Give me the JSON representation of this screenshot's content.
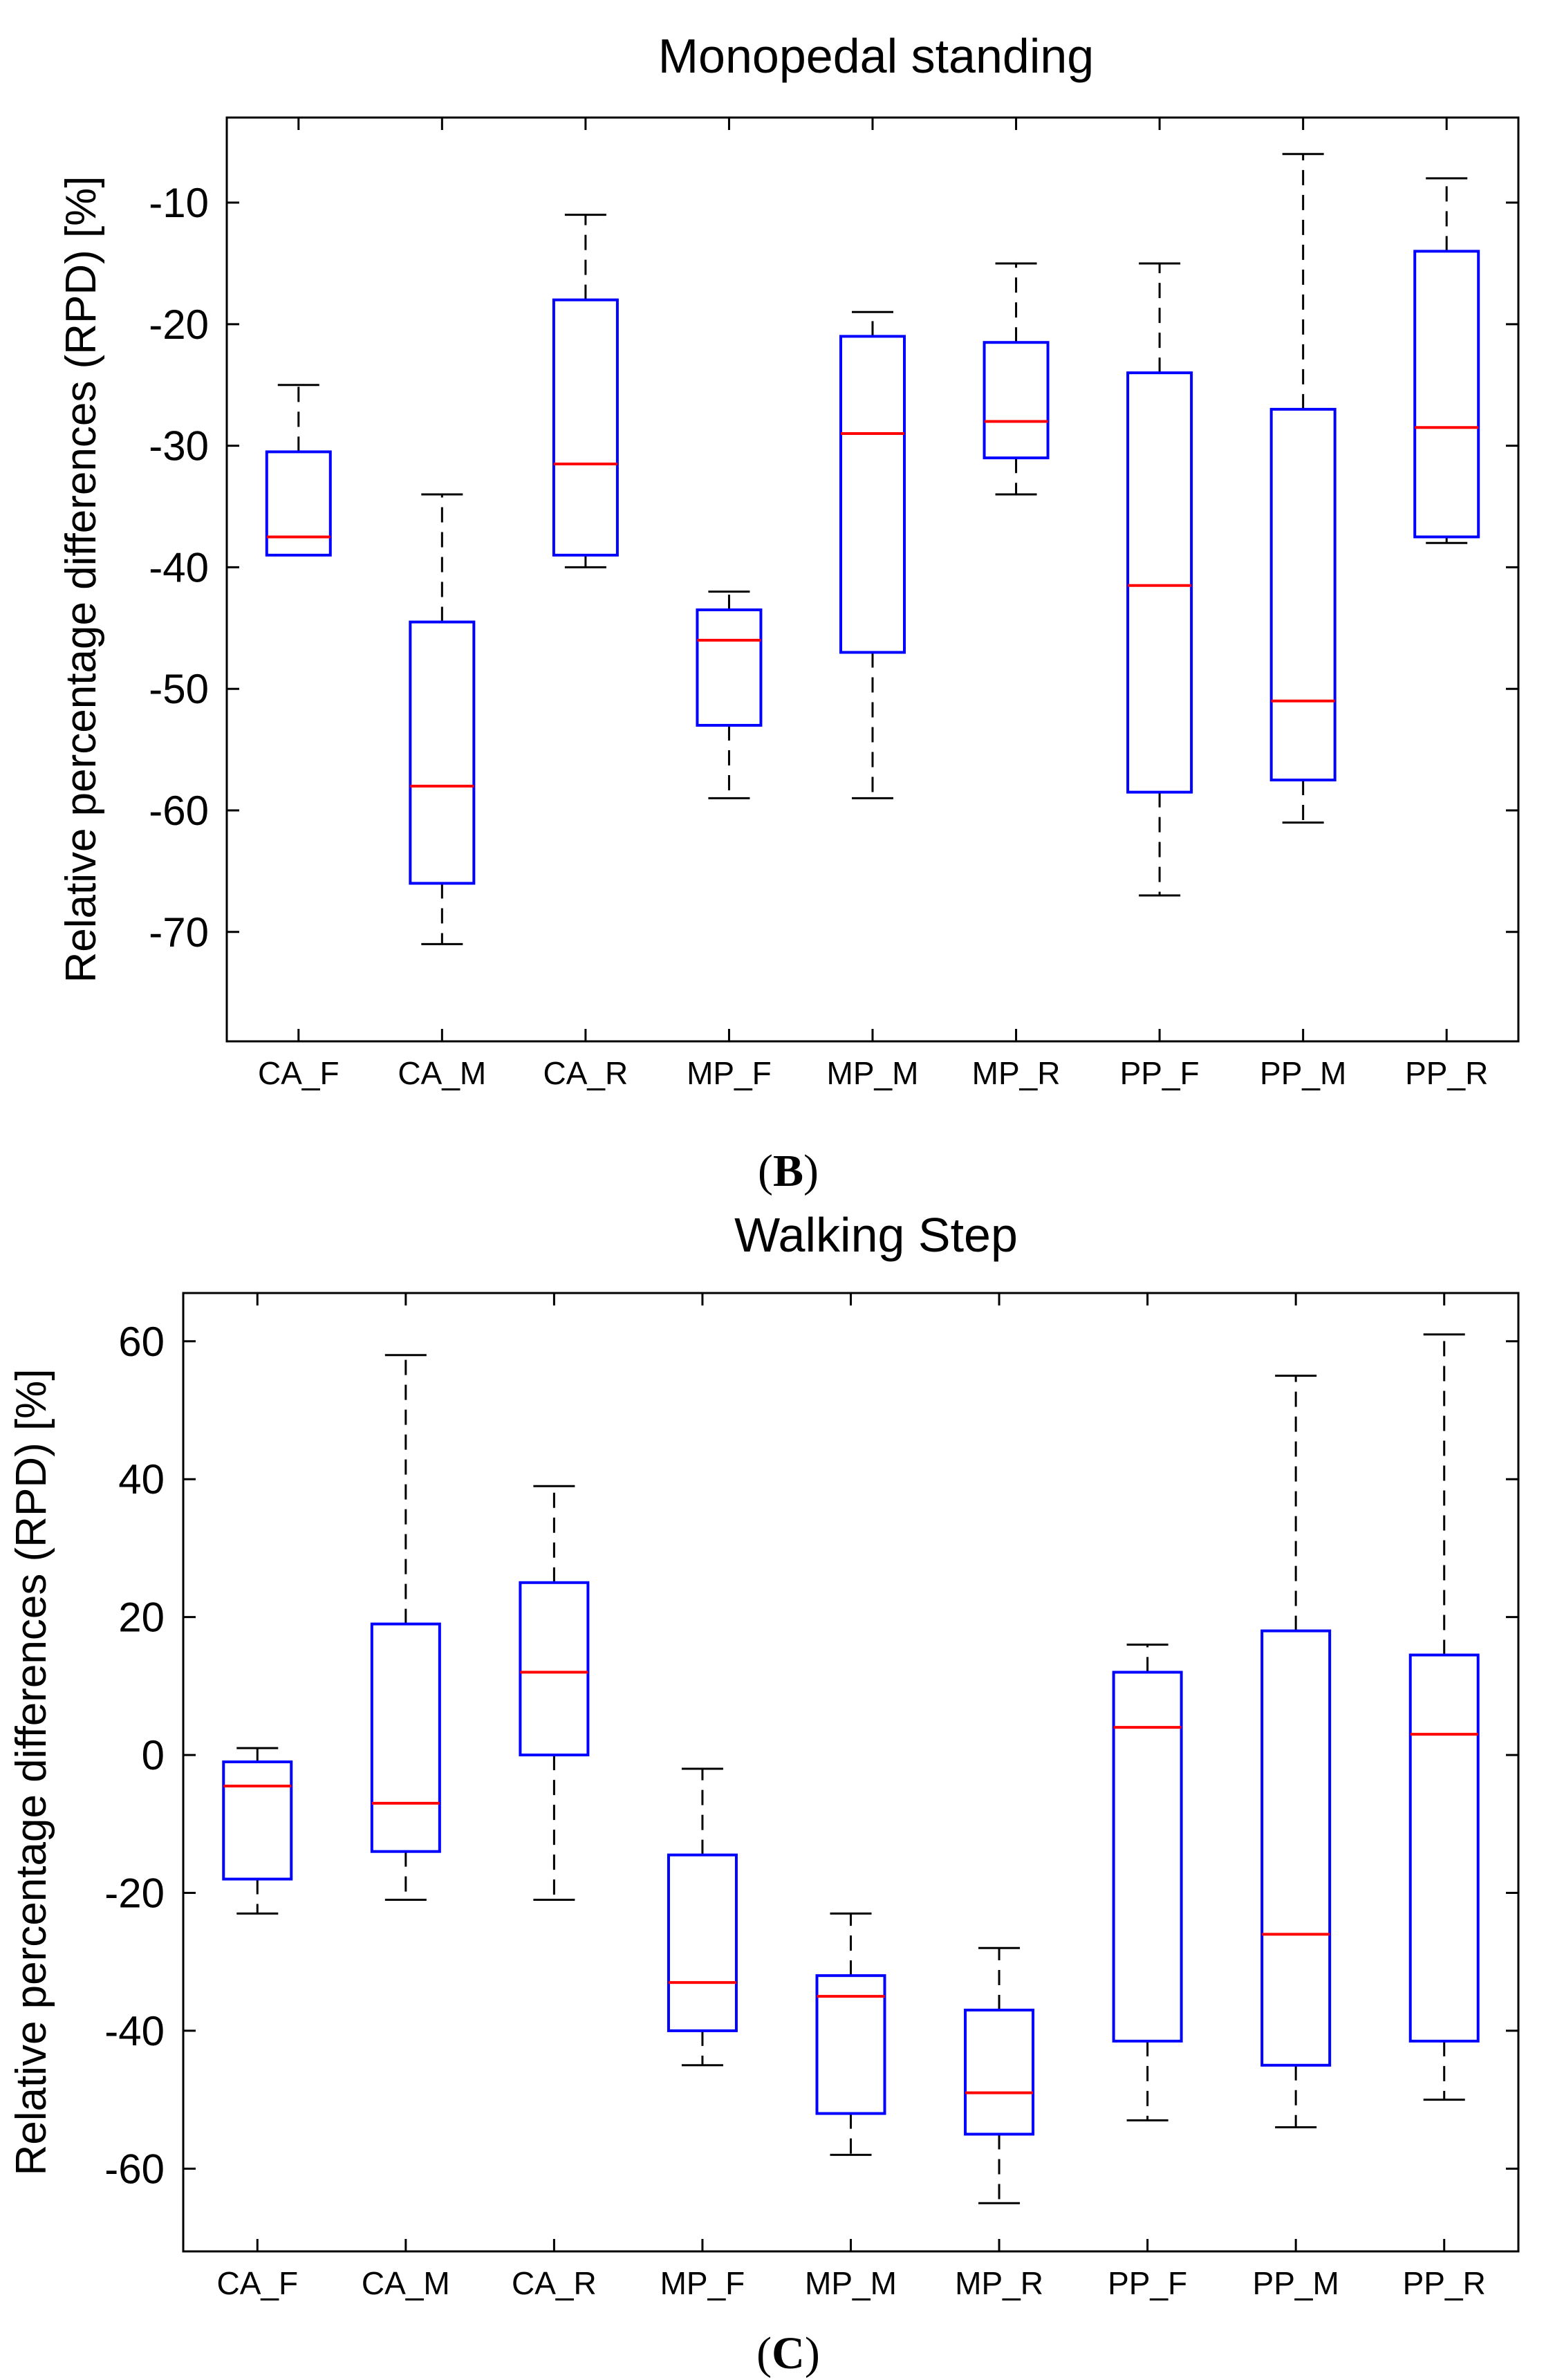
{
  "chart_data": [
    {
      "type": "boxplot",
      "panel_label": "",
      "title": "Monopedal standing",
      "xlabel": "",
      "ylabel": "Relative percentage differences (RPD) [%]",
      "ylim": [
        -79,
        -3
      ],
      "yticks": [
        -70,
        -60,
        -50,
        -40,
        -30,
        -20,
        -10
      ],
      "categories": [
        "CA_F",
        "CA_M",
        "CA_R",
        "MP_F",
        "MP_M",
        "MP_R",
        "PP_F",
        "PP_M",
        "PP_R"
      ],
      "boxes": [
        {
          "whisker_low": -39,
          "q1": -39,
          "median": -37.5,
          "q3": -30.5,
          "whisker_high": -25
        },
        {
          "whisker_low": -71,
          "q1": -66,
          "median": -58,
          "q3": -44.5,
          "whisker_high": -34
        },
        {
          "whisker_low": -40,
          "q1": -39,
          "median": -31.5,
          "q3": -18,
          "whisker_high": -11
        },
        {
          "whisker_low": -59,
          "q1": -53,
          "median": -46,
          "q3": -43.5,
          "whisker_high": -42
        },
        {
          "whisker_low": -59,
          "q1": -47,
          "median": -29,
          "q3": -21,
          "whisker_high": -19
        },
        {
          "whisker_low": -34,
          "q1": -31,
          "median": -28,
          "q3": -21.5,
          "whisker_high": -15
        },
        {
          "whisker_low": -67,
          "q1": -58.5,
          "median": -41.5,
          "q3": -24,
          "whisker_high": -15
        },
        {
          "whisker_low": -61,
          "q1": -57.5,
          "median": -51,
          "q3": -27,
          "whisker_high": -6
        },
        {
          "whisker_low": -38,
          "q1": -37.5,
          "median": -28.5,
          "q3": -14,
          "whisker_high": -8
        }
      ],
      "colors": {
        "box": "#0000ff",
        "median": "#ff0000",
        "whisker": "#000000"
      }
    },
    {
      "type": "boxplot",
      "panel_label": "C",
      "title": "Walking Step",
      "xlabel": "",
      "ylabel": "Relative percentage differences (RPD) [%]",
      "ylim": [
        -72,
        67
      ],
      "yticks": [
        -60,
        -40,
        -20,
        0,
        20,
        40,
        60
      ],
      "categories": [
        "CA_F",
        "CA_M",
        "CA_R",
        "MP_F",
        "MP_M",
        "MP_R",
        "PP_F",
        "PP_M",
        "PP_R"
      ],
      "boxes": [
        {
          "whisker_low": -23,
          "q1": -18,
          "median": -4.5,
          "q3": -1,
          "whisker_high": 1
        },
        {
          "whisker_low": -21,
          "q1": -14,
          "median": -7,
          "q3": 19,
          "whisker_high": 58
        },
        {
          "whisker_low": -21,
          "q1": 0,
          "median": 12,
          "q3": 25,
          "whisker_high": 39
        },
        {
          "whisker_low": -45,
          "q1": -40,
          "median": -33,
          "q3": -14.5,
          "whisker_high": -2
        },
        {
          "whisker_low": -58,
          "q1": -52,
          "median": -35,
          "q3": -32,
          "whisker_high": -23
        },
        {
          "whisker_low": -65,
          "q1": -55,
          "median": -49,
          "q3": -37,
          "whisker_high": -28
        },
        {
          "whisker_low": -53,
          "q1": -41.5,
          "median": 4,
          "q3": 12,
          "whisker_high": 16
        },
        {
          "whisker_low": -54,
          "q1": -45,
          "median": -26,
          "q3": 18,
          "whisker_high": 55
        },
        {
          "whisker_low": -50,
          "q1": -41.5,
          "median": 3,
          "q3": 14.5,
          "whisker_high": 61
        }
      ],
      "colors": {
        "box": "#0000ff",
        "median": "#ff0000",
        "whisker": "#000000"
      }
    }
  ],
  "captions": {
    "panel_b": {
      "open": "(",
      "letter": "B",
      "close": ")"
    },
    "panel_c": {
      "open": "(",
      "letter": "C",
      "close": ")"
    }
  }
}
